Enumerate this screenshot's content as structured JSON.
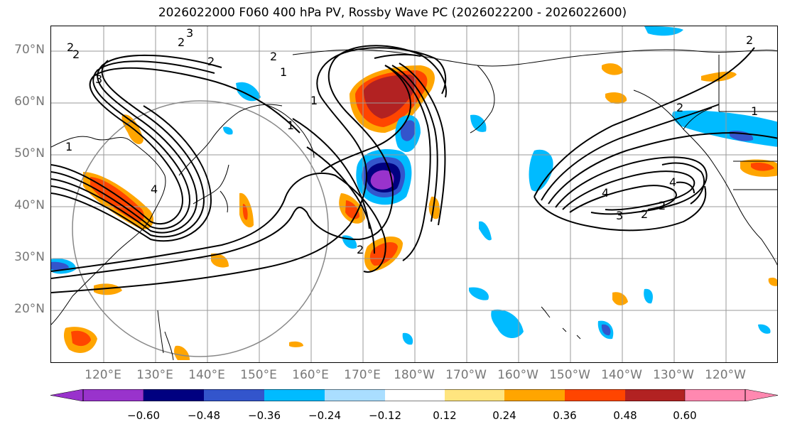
{
  "title": "2026022000 F060 400 hPa PV, Rossby Wave PC (2026022200 - 2026022600)",
  "lat_labels": [
    "70°N",
    "60°N",
    "50°N",
    "40°N",
    "30°N",
    "20°N"
  ],
  "lon_labels": [
    "120°E",
    "130°E",
    "140°E",
    "150°E",
    "160°E",
    "170°E",
    "180°W",
    "170°W",
    "160°W",
    "150°W",
    "140°W",
    "130°W",
    "120°W"
  ],
  "colorbar": {
    "ticks": [
      "−0.60",
      "−0.48",
      "−0.36",
      "−0.24",
      "−0.12",
      "0.12",
      "0.24",
      "0.36",
      "0.48",
      "0.60"
    ],
    "colors": [
      "#9933cc",
      "#000080",
      "#3355cc",
      "#00bbff",
      "#aadeff",
      "#ffffff",
      "#ffe57f",
      "#ffa500",
      "#ff4500",
      "#b22222",
      "#ff88b0"
    ]
  },
  "contour_labels": [
    "2",
    "2",
    "3",
    "2",
    "2",
    "1",
    "2",
    "3",
    "4",
    "1",
    "1",
    "1",
    "2",
    "2",
    "1",
    "4",
    "3",
    "2",
    "2",
    "4",
    "2"
  ]
}
